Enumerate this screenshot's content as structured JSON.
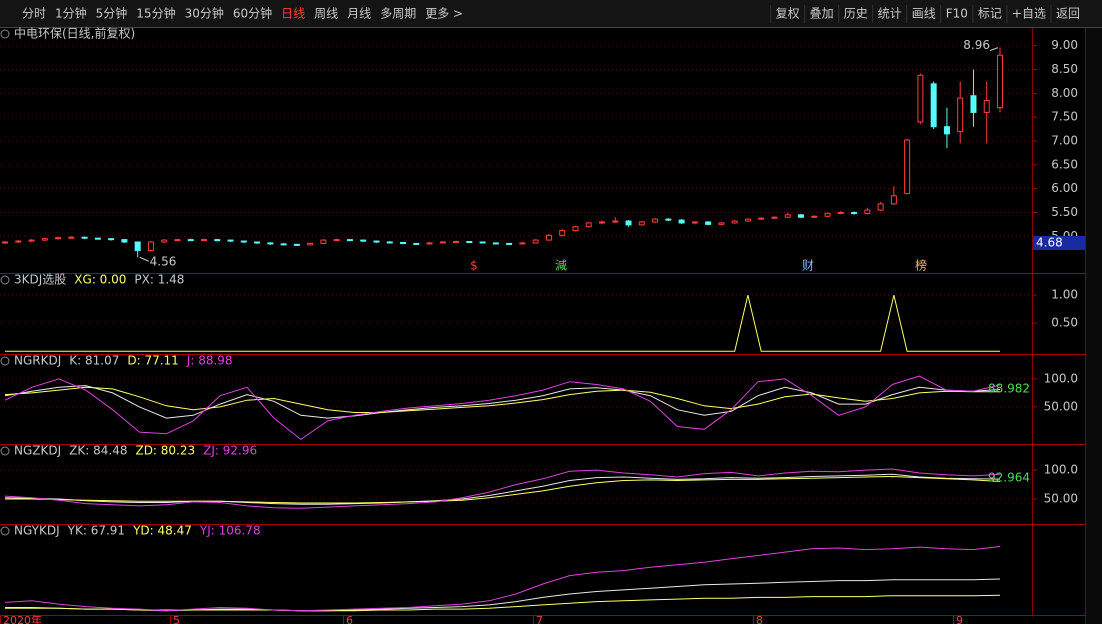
{
  "toolbar": {
    "tabs": [
      "分时",
      "1分钟",
      "5分钟",
      "15分钟",
      "30分钟",
      "60分钟",
      "日线",
      "周线",
      "月线",
      "多周期",
      "更多 >"
    ],
    "active": 6,
    "buttons": [
      "复权",
      "叠加",
      "历史",
      "统计",
      "画线",
      "F10",
      "标记",
      "+自选",
      "返回"
    ]
  },
  "date_axis": [
    "2020年",
    "5",
    "6",
    "7",
    "8",
    "9"
  ],
  "chart_data": [
    {
      "type": "candlestick",
      "title": "中电环保(日线,前复权)",
      "color_up": "#ff3c3c",
      "color_down": "#54fcfc",
      "ylim": [
        4.25,
        9.33
      ],
      "yticks": [
        {
          "value": 5,
          "label": "5.00"
        },
        {
          "value": 5.5,
          "label": "5.50"
        },
        {
          "value": 6,
          "label": "6.00"
        },
        {
          "value": 6.5,
          "label": "6.50"
        },
        {
          "value": 7,
          "label": "7.00"
        },
        {
          "value": 7.5,
          "label": "7.50"
        },
        {
          "value": 8,
          "label": "8.00"
        },
        {
          "value": 8.5,
          "label": "8.50"
        },
        {
          "value": 9,
          "label": "9.00"
        }
      ],
      "candles": [
        [
          4.86,
          4.9,
          4.84,
          4.88
        ],
        [
          4.88,
          4.92,
          4.86,
          4.9
        ],
        [
          4.9,
          4.94,
          4.88,
          4.92
        ],
        [
          4.92,
          4.97,
          4.9,
          4.95
        ],
        [
          4.95,
          4.99,
          4.93,
          4.97
        ],
        [
          4.97,
          5.0,
          4.95,
          4.98
        ],
        [
          4.98,
          4.99,
          4.94,
          4.96
        ],
        [
          4.96,
          4.97,
          4.93,
          4.95
        ],
        [
          4.95,
          4.96,
          4.91,
          4.93
        ],
        [
          4.93,
          4.94,
          4.86,
          4.88
        ],
        [
          4.88,
          4.89,
          4.56,
          4.7
        ],
        [
          4.7,
          4.9,
          4.68,
          4.88
        ],
        [
          4.88,
          4.94,
          4.86,
          4.92
        ],
        [
          4.92,
          4.95,
          4.9,
          4.93
        ],
        [
          4.93,
          4.95,
          4.9,
          4.92
        ],
        [
          4.92,
          4.95,
          4.9,
          4.93
        ],
        [
          4.93,
          4.94,
          4.89,
          4.92
        ],
        [
          4.92,
          4.93,
          4.88,
          4.9
        ],
        [
          4.9,
          4.91,
          4.86,
          4.88
        ],
        [
          4.88,
          4.89,
          4.84,
          4.86
        ],
        [
          4.86,
          4.88,
          4.82,
          4.84
        ],
        [
          4.84,
          4.86,
          4.81,
          4.83
        ],
        [
          4.83,
          4.84,
          4.8,
          4.82
        ],
        [
          4.82,
          4.87,
          4.81,
          4.85
        ],
        [
          4.85,
          4.94,
          4.84,
          4.92
        ],
        [
          4.92,
          4.95,
          4.9,
          4.93
        ],
        [
          4.93,
          4.94,
          4.9,
          4.92
        ],
        [
          4.92,
          4.93,
          4.88,
          4.9
        ],
        [
          4.9,
          4.91,
          4.86,
          4.88
        ],
        [
          4.88,
          4.9,
          4.85,
          4.87
        ],
        [
          4.87,
          4.88,
          4.83,
          4.85
        ],
        [
          4.85,
          4.86,
          4.82,
          4.84
        ],
        [
          4.84,
          4.88,
          4.83,
          4.86
        ],
        [
          4.86,
          4.9,
          4.85,
          4.88
        ],
        [
          4.88,
          4.91,
          4.87,
          4.89
        ],
        [
          4.89,
          4.9,
          4.86,
          4.88
        ],
        [
          4.88,
          4.89,
          4.85,
          4.86
        ],
        [
          4.86,
          4.87,
          4.83,
          4.85
        ],
        [
          4.85,
          4.86,
          4.82,
          4.84
        ],
        [
          4.84,
          4.88,
          4.83,
          4.86
        ],
        [
          4.86,
          4.94,
          4.85,
          4.92
        ],
        [
          4.92,
          5.05,
          4.91,
          5.02
        ],
        [
          5.02,
          5.15,
          5.0,
          5.12
        ],
        [
          5.12,
          5.22,
          5.1,
          5.2
        ],
        [
          5.2,
          5.3,
          5.18,
          5.28
        ],
        [
          5.28,
          5.33,
          5.25,
          5.3
        ],
        [
          5.3,
          5.4,
          5.28,
          5.32
        ],
        [
          5.32,
          5.34,
          5.2,
          5.24
        ],
        [
          5.24,
          5.32,
          5.22,
          5.3
        ],
        [
          5.3,
          5.38,
          5.28,
          5.36
        ],
        [
          5.36,
          5.38,
          5.32,
          5.34
        ],
        [
          5.34,
          5.36,
          5.26,
          5.28
        ],
        [
          5.28,
          5.32,
          5.25,
          5.3
        ],
        [
          5.3,
          5.32,
          5.23,
          5.25
        ],
        [
          5.25,
          5.3,
          5.23,
          5.28
        ],
        [
          5.28,
          5.34,
          5.26,
          5.32
        ],
        [
          5.32,
          5.38,
          5.3,
          5.36
        ],
        [
          5.36,
          5.4,
          5.34,
          5.38
        ],
        [
          5.38,
          5.42,
          5.36,
          5.4
        ],
        [
          5.4,
          5.5,
          5.38,
          5.45
        ],
        [
          5.45,
          5.47,
          5.38,
          5.4
        ],
        [
          5.4,
          5.44,
          5.38,
          5.42
        ],
        [
          5.42,
          5.5,
          5.4,
          5.48
        ],
        [
          5.48,
          5.53,
          5.46,
          5.5
        ],
        [
          5.5,
          5.52,
          5.45,
          5.48
        ],
        [
          5.48,
          5.6,
          5.46,
          5.55
        ],
        [
          5.55,
          5.72,
          5.53,
          5.68
        ],
        [
          5.68,
          6.05,
          5.66,
          5.85
        ],
        [
          5.9,
          7.05,
          5.88,
          7.02
        ],
        [
          7.4,
          8.42,
          7.35,
          8.38
        ],
        [
          8.2,
          8.25,
          7.25,
          7.3
        ],
        [
          7.3,
          7.7,
          6.85,
          7.15
        ],
        [
          7.2,
          8.25,
          6.95,
          7.9
        ],
        [
          7.95,
          8.5,
          7.3,
          7.6
        ],
        [
          7.6,
          8.25,
          6.95,
          7.85
        ],
        [
          7.7,
          8.96,
          7.6,
          8.8
        ]
      ],
      "high_label": 8.96,
      "low_label": 4.56,
      "price_tag": 4.68,
      "events": [
        "$",
        "減",
        "财",
        "榜"
      ]
    },
    {
      "type": "line",
      "title": "3KDJ选股",
      "ylim": [
        -0.05,
        1.34
      ],
      "yticks": [
        {
          "value": 1,
          "label": "1.00"
        },
        {
          "value": 0.5,
          "label": "0.50"
        }
      ],
      "annotations": [
        "PX: 1.48"
      ],
      "series": [
        {
          "name": "XG: 0.00",
          "color": "#ffff66",
          "values": [
            0,
            0,
            0,
            0,
            0,
            0,
            0,
            0,
            0,
            0,
            0,
            0,
            0,
            0,
            0,
            0,
            0,
            0,
            0,
            0,
            0,
            0,
            0,
            0,
            0,
            0,
            0,
            0,
            0,
            0,
            0,
            0,
            0,
            0,
            0,
            0,
            0,
            0,
            0,
            0,
            0,
            0,
            0,
            0,
            0,
            0,
            0,
            0,
            0,
            0,
            0,
            0,
            0,
            0,
            0,
            0,
            1,
            0,
            0,
            0,
            0,
            0,
            0,
            0,
            0,
            0,
            0,
            1,
            0,
            0,
            0,
            0,
            0,
            0,
            0,
            0
          ]
        }
      ]
    },
    {
      "type": "line",
      "title": "NGRKDJ",
      "ylim": [
        -18,
        139
      ],
      "yticks": [
        {
          "value": 100,
          "label": "100.0"
        },
        {
          "value": 50,
          "label": "50.00"
        }
      ],
      "end_label": "88.982",
      "series": [
        {
          "name": "K: 81.07",
          "color": "#e8e8e8",
          "values": [
            70,
            78,
            85,
            88,
            75,
            50,
            30,
            35,
            55,
            72,
            60,
            35,
            30,
            34,
            40,
            45,
            49,
            52,
            56,
            62,
            70,
            82,
            84,
            80,
            70,
            45,
            35,
            42,
            70,
            85,
            75,
            55,
            55,
            72,
            85,
            80,
            78,
            81.07
          ]
        },
        {
          "name": "D: 77.11",
          "color": "#ffff66",
          "values": [
            72,
            75,
            80,
            85,
            82,
            68,
            52,
            45,
            50,
            62,
            65,
            55,
            45,
            40,
            40,
            43,
            46,
            49,
            52,
            57,
            63,
            72,
            78,
            80,
            76,
            65,
            52,
            47,
            55,
            68,
            73,
            66,
            60,
            65,
            75,
            78,
            77,
            77.11
          ]
        },
        {
          "name": "J: 88.98",
          "color": "#e040e0",
          "values": [
            62,
            85,
            100,
            80,
            45,
            5,
            2,
            25,
            70,
            85,
            30,
            -8,
            25,
            35,
            42,
            48,
            52,
            56,
            62,
            70,
            80,
            95,
            90,
            82,
            60,
            15,
            10,
            45,
            95,
            100,
            70,
            35,
            50,
            90,
            105,
            80,
            78,
            88.98
          ]
        }
      ]
    },
    {
      "type": "line",
      "title": "NGZKDJ",
      "ylim": [
        5,
        140
      ],
      "yticks": [
        {
          "value": 100,
          "label": "100.0"
        },
        {
          "value": 50,
          "label": "50.00"
        }
      ],
      "end_label": "92.964",
      "series": [
        {
          "name": "ZK: 84.48",
          "color": "#e8e8e8",
          "values": [
            52,
            51,
            50,
            47,
            45,
            44,
            44,
            46,
            46,
            44,
            42,
            41,
            41,
            42,
            43,
            45,
            47,
            50,
            56,
            64,
            72,
            82,
            87,
            88,
            86,
            84,
            85,
            87,
            86,
            87,
            89,
            90,
            91,
            93,
            88,
            86,
            85,
            84.48
          ]
        },
        {
          "name": "ZD: 80.23",
          "color": "#ffff66",
          "values": [
            50,
            50,
            49,
            48,
            47,
            46,
            46,
            46,
            46,
            45,
            44,
            43,
            43,
            43,
            44,
            45,
            46,
            48,
            52,
            58,
            64,
            72,
            78,
            82,
            83,
            82,
            83,
            84,
            84,
            85,
            86,
            87,
            88,
            89,
            87,
            85,
            83,
            80.23
          ]
        },
        {
          "name": "ZJ: 92.96",
          "color": "#e040e0",
          "values": [
            55,
            52,
            48,
            42,
            40,
            38,
            40,
            45,
            44,
            38,
            35,
            34,
            36,
            38,
            40,
            42,
            45,
            52,
            62,
            75,
            85,
            98,
            100,
            95,
            92,
            88,
            94,
            96,
            90,
            95,
            98,
            97,
            100,
            102,
            95,
            92,
            90,
            92.96
          ]
        }
      ]
    },
    {
      "type": "line",
      "title": "NGYKDJ",
      "ylim": [
        25,
        130
      ],
      "yticks": [],
      "series": [
        {
          "name": "YK: 67.91",
          "color": "#e8e8e8",
          "values": [
            34,
            34,
            33,
            32,
            32,
            31,
            30,
            31,
            32,
            32,
            31,
            30,
            30,
            31,
            32,
            33,
            34,
            35,
            37,
            41,
            46,
            50,
            53,
            55,
            57,
            59,
            61,
            62,
            63,
            64,
            65,
            66,
            66,
            67,
            67,
            67,
            67,
            67.91
          ]
        },
        {
          "name": "YD: 48.47",
          "color": "#ffff66",
          "values": [
            33,
            33,
            33,
            32,
            32,
            31,
            31,
            31,
            31,
            31,
            31,
            30,
            30,
            30,
            31,
            31,
            32,
            32,
            33,
            35,
            37,
            39,
            41,
            42,
            43,
            44,
            45,
            45,
            46,
            46,
            47,
            47,
            47,
            48,
            48,
            48,
            48,
            48.47
          ]
        },
        {
          "name": "YJ: 106.78",
          "color": "#e040e0",
          "values": [
            40,
            42,
            38,
            35,
            33,
            32,
            30,
            32,
            34,
            33,
            31,
            30,
            31,
            32,
            33,
            34,
            36,
            38,
            42,
            50,
            62,
            72,
            76,
            78,
            82,
            85,
            88,
            92,
            96,
            100,
            104,
            105,
            103,
            104,
            106,
            104,
            103,
            106.78
          ]
        }
      ]
    }
  ]
}
